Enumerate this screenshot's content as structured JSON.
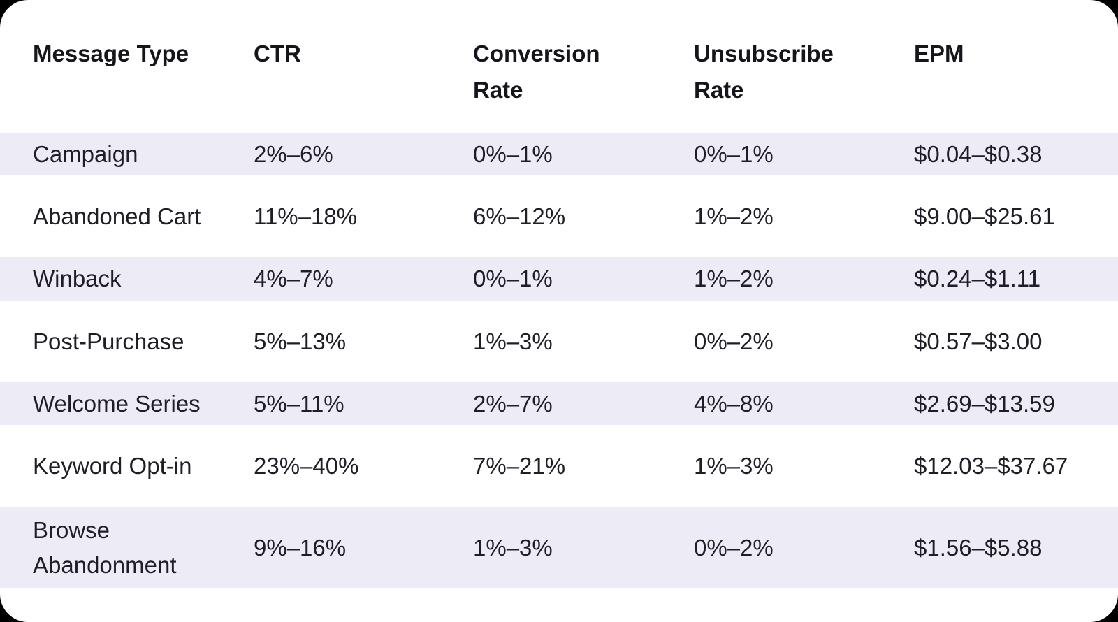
{
  "chart_data": {
    "type": "table",
    "columns": [
      {
        "id": "message_type",
        "label": "Message Type"
      },
      {
        "id": "ctr",
        "label": "CTR"
      },
      {
        "id": "conversion_rate",
        "label": "Conversion Rate"
      },
      {
        "id": "unsubscribe_rate",
        "label": "Unsubscribe Rate"
      },
      {
        "id": "epm",
        "label": "EPM"
      }
    ],
    "rows": [
      {
        "message_type": "Campaign",
        "ctr": "2%–6%",
        "conversion_rate": "0%–1%",
        "unsubscribe_rate": "0%–1%",
        "epm": "$0.04–$0.38"
      },
      {
        "message_type": "Abandoned Cart",
        "ctr": "11%–18%",
        "conversion_rate": "6%–12%",
        "unsubscribe_rate": "1%–2%",
        "epm": "$9.00–$25.61"
      },
      {
        "message_type": "Winback",
        "ctr": "4%–7%",
        "conversion_rate": "0%–1%",
        "unsubscribe_rate": "1%–2%",
        "epm": "$0.24–$1.11"
      },
      {
        "message_type": "Post-Purchase",
        "ctr": "5%–13%",
        "conversion_rate": "1%–3%",
        "unsubscribe_rate": "0%–2%",
        "epm": "$0.57–$3.00"
      },
      {
        "message_type": "Welcome Series",
        "ctr": "5%–11%",
        "conversion_rate": "2%–7%",
        "unsubscribe_rate": "4%–8%",
        "epm": "$2.69–$13.59"
      },
      {
        "message_type": "Keyword Opt-in",
        "ctr": "23%–40%",
        "conversion_rate": "7%–21%",
        "unsubscribe_rate": "1%–3%",
        "epm": "$12.03–$37.67"
      },
      {
        "message_type": "Browse Abandonment",
        "ctr": "9%–16%",
        "conversion_rate": "1%–3%",
        "unsubscribe_rate": "0%–2%",
        "epm": "$1.56–$5.88"
      }
    ],
    "striped_rows": "odd",
    "layout_hints": {
      "stripe_style": "alternating lavender bands",
      "header_wrap_columns": [
        "Conversion Rate",
        "Unsubscribe Rate"
      ]
    }
  },
  "colors": {
    "page_background": "#000000",
    "card_background": "#ffffff",
    "stripe": "#EDEBF6",
    "header_text": "#15161b",
    "body_text": "#1e1f26"
  }
}
